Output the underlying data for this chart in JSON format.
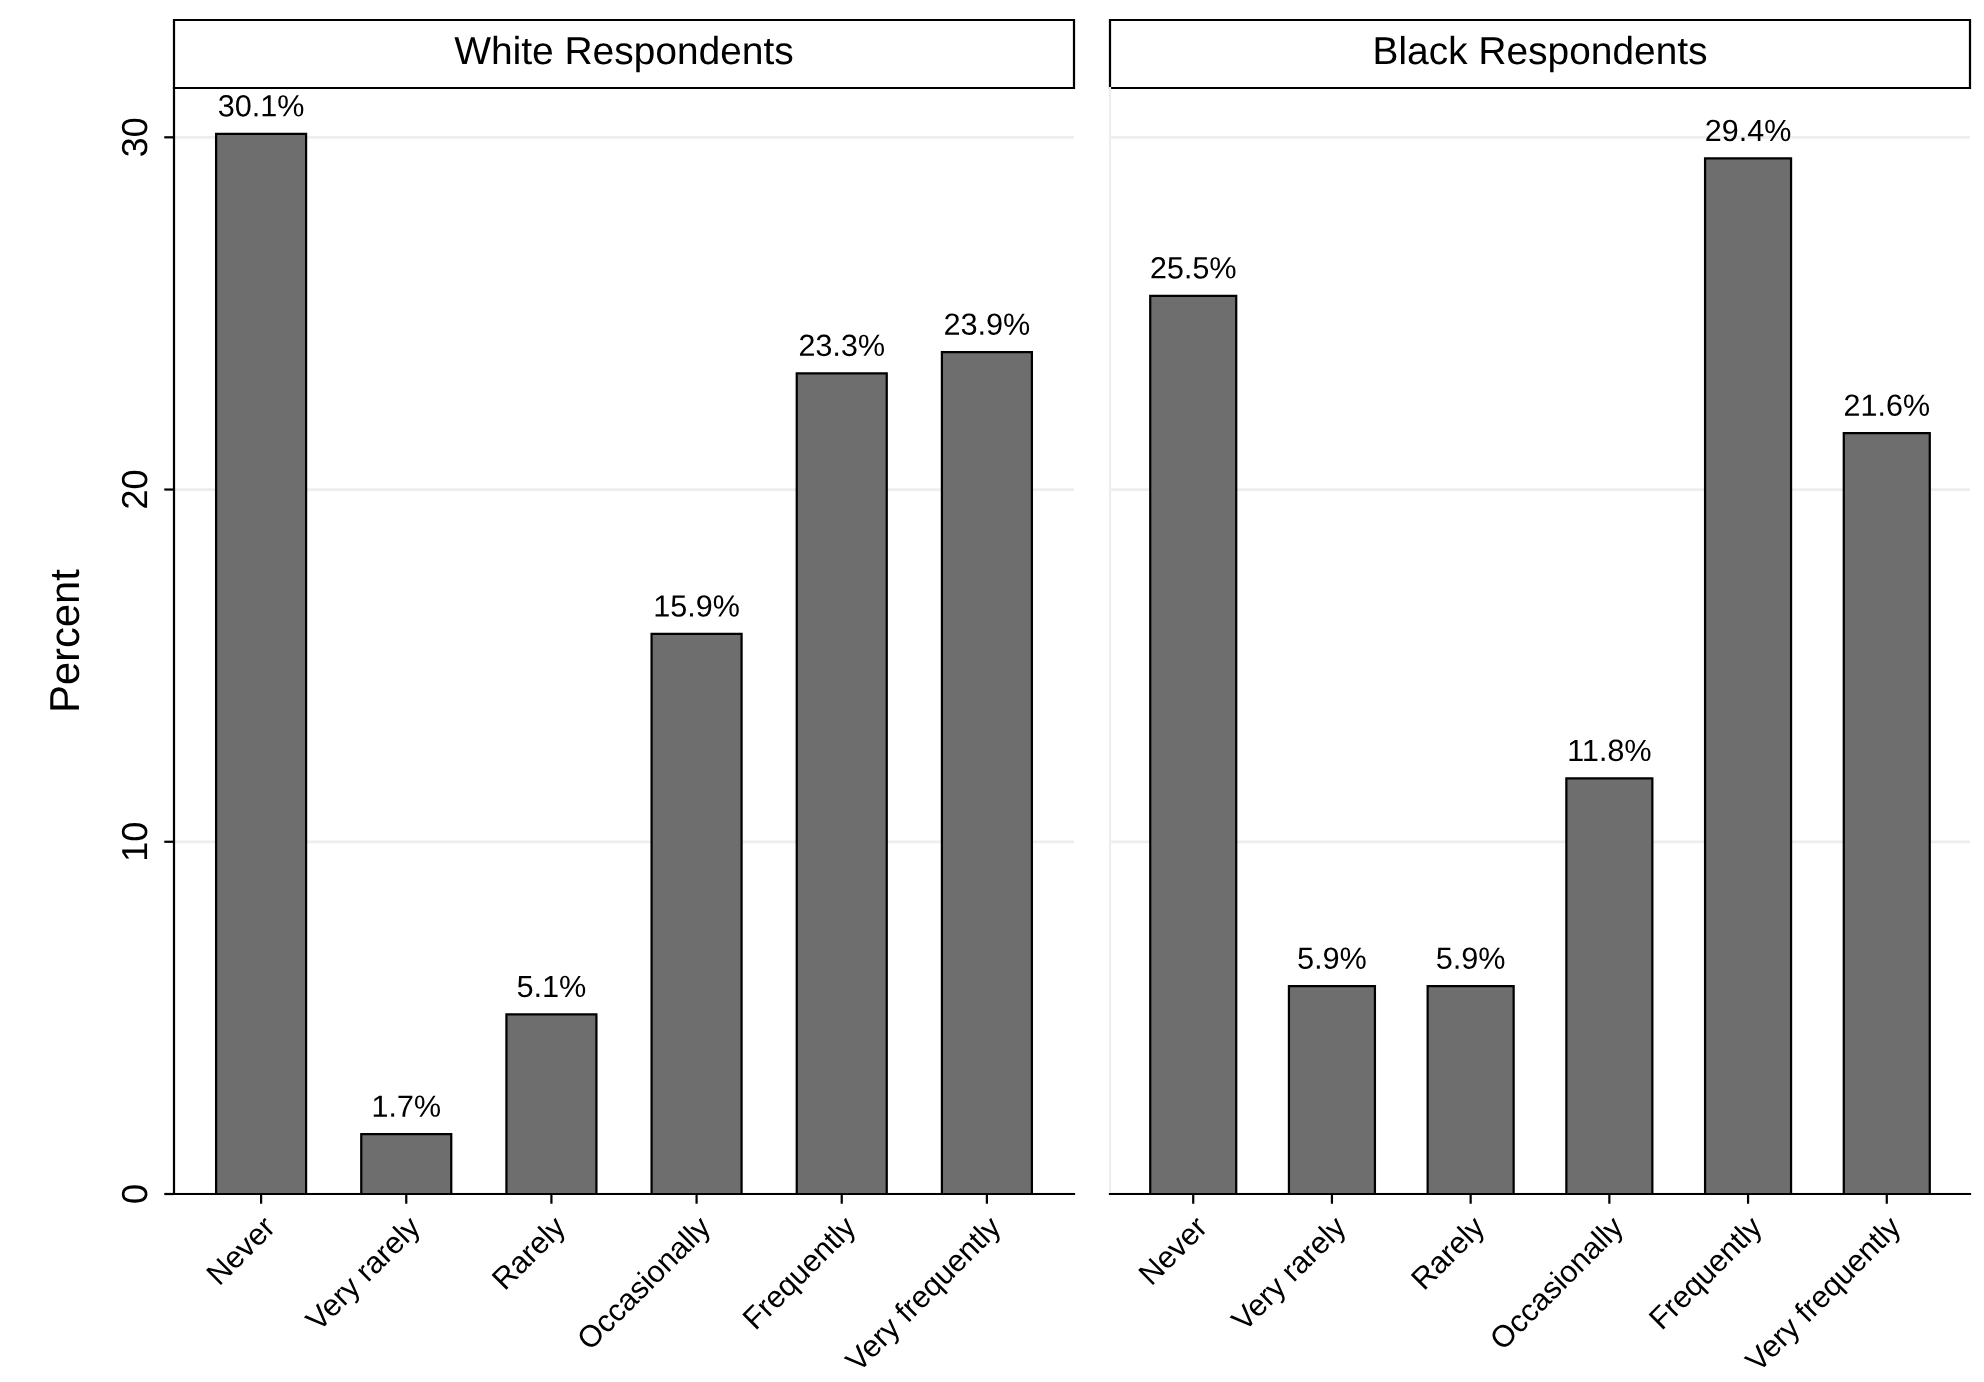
{
  "chart_data": [
    {
      "type": "bar",
      "title": "White Respondents",
      "ylabel": "Percent",
      "categories": [
        "Never",
        "Very rarely",
        "Rarely",
        "Occasionally",
        "Frequently",
        "Very frequently"
      ],
      "values": [
        30.1,
        1.7,
        5.1,
        15.9,
        23.3,
        23.9
      ],
      "value_labels": [
        "30.1%",
        "1.7%",
        "5.1%",
        "15.9%",
        "23.3%",
        "23.9%"
      ],
      "color": "#6e6e6e",
      "ylim": [
        0,
        31.4
      ],
      "yticks": [
        0,
        10,
        20,
        30
      ],
      "grid": "y"
    },
    {
      "type": "bar",
      "title": "Black Respondents",
      "categories": [
        "Never",
        "Very rarely",
        "Rarely",
        "Occasionally",
        "Frequently",
        "Very frequently"
      ],
      "values": [
        25.5,
        5.9,
        5.9,
        11.8,
        29.4,
        21.6
      ],
      "value_labels": [
        "25.5%",
        "5.9%",
        "5.9%",
        "11.8%",
        "29.4%",
        "21.6%"
      ],
      "color": "#6e6e6e",
      "ylim": [
        0,
        31.4
      ],
      "yticks": [
        0,
        10,
        20,
        30
      ],
      "grid": "y",
      "tick_labels": "x"
    }
  ]
}
